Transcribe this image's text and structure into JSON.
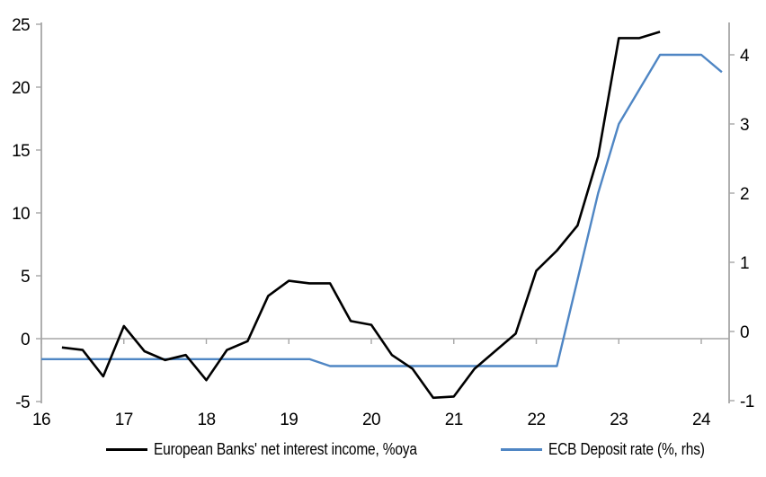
{
  "chart_data": {
    "type": "line",
    "title": "",
    "x_axis": {
      "ticks": [
        16,
        17,
        18,
        19,
        20,
        21,
        22,
        23,
        24
      ],
      "min": 16,
      "max": 24.35,
      "grid": false
    },
    "left_axis": {
      "ticks": [
        25,
        20,
        15,
        10,
        5,
        0,
        -5
      ],
      "min": -5,
      "max": 25,
      "grid": false,
      "zero_line": true
    },
    "right_axis": {
      "ticks": [
        4,
        3,
        2,
        1,
        0,
        -1
      ],
      "min": -1,
      "max": 4.5,
      "grid": false
    },
    "series": [
      {
        "name": "European Banks' net interest income, %oya",
        "axis": "left",
        "color": "#000000",
        "width": 2.6,
        "x": [
          16.25,
          16.5,
          16.75,
          17.0,
          17.25,
          17.5,
          17.75,
          18.0,
          18.25,
          18.5,
          18.75,
          19.0,
          19.25,
          19.5,
          19.75,
          20.0,
          20.25,
          20.5,
          20.75,
          21.0,
          21.25,
          21.5,
          21.75,
          22.0,
          22.25,
          22.5,
          22.75,
          23.0,
          23.25,
          23.5
        ],
        "values": [
          -0.7,
          -0.9,
          -3.0,
          1.0,
          -1.0,
          -1.7,
          -1.3,
          -3.3,
          -0.9,
          -0.2,
          3.4,
          4.6,
          4.4,
          4.4,
          1.4,
          1.1,
          -1.3,
          -2.4,
          -4.7,
          -4.6,
          -2.4,
          -1.0,
          0.4,
          5.4,
          7.0,
          9.0,
          14.5,
          23.9,
          23.9,
          24.4
        ]
      },
      {
        "name": "ECB Deposit rate (%, rhs)",
        "axis": "right",
        "color": "#4f86c4",
        "width": 2.4,
        "x": [
          16.0,
          16.25,
          16.5,
          16.75,
          17.0,
          17.25,
          17.5,
          17.75,
          18.0,
          18.25,
          18.5,
          18.75,
          19.0,
          19.25,
          19.5,
          19.75,
          20.0,
          20.25,
          20.5,
          20.75,
          21.0,
          21.25,
          21.5,
          21.75,
          22.0,
          22.25,
          22.5,
          22.75,
          23.0,
          23.25,
          23.5,
          23.75,
          24.0,
          24.25
        ],
        "values": [
          -0.4,
          -0.4,
          -0.4,
          -0.4,
          -0.4,
          -0.4,
          -0.4,
          -0.4,
          -0.4,
          -0.4,
          -0.4,
          -0.4,
          -0.4,
          -0.4,
          -0.5,
          -0.5,
          -0.5,
          -0.5,
          -0.5,
          -0.5,
          -0.5,
          -0.5,
          -0.5,
          -0.5,
          -0.5,
          -0.5,
          0.75,
          2.0,
          3.0,
          3.5,
          4.0,
          4.0,
          4.0,
          3.75
        ]
      }
    ],
    "legend": {
      "position": "bottom",
      "entries": [
        {
          "label": "European Banks' net interest income, %oya",
          "color": "#000000"
        },
        {
          "label": "ECB Deposit rate (%, rhs)",
          "color": "#4f86c4"
        }
      ]
    }
  },
  "colors": {
    "axis": "#a6a6a6",
    "zero_line": "#a6a6a6",
    "background": "#ffffff",
    "text": "#000000"
  }
}
